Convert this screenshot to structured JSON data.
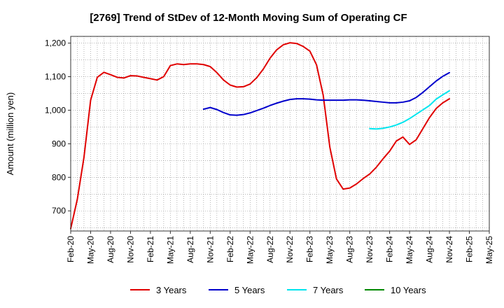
{
  "chart_data": {
    "type": "line",
    "title": "[2769]  Trend of StDev of 12-Month Moving Sum of Operating CF",
    "xlabel": "",
    "ylabel": "Amount (million yen)",
    "ylim": [
      640,
      1220
    ],
    "yticks": [
      700,
      800,
      900,
      1000,
      1100,
      1200
    ],
    "ytick_labels": [
      "700",
      "800",
      "900",
      "1,000",
      "1,100",
      "1,200"
    ],
    "xlim": [
      "2020-02",
      "2025-05"
    ],
    "xtick_labels": [
      "Feb-20",
      "May-20",
      "Aug-20",
      "Nov-20",
      "Feb-21",
      "May-21",
      "Aug-21",
      "Nov-21",
      "Feb-22",
      "May-22",
      "Aug-22",
      "Nov-22",
      "Feb-23",
      "May-23",
      "Aug-23",
      "Nov-23",
      "Feb-24",
      "May-24",
      "Aug-24",
      "Nov-24",
      "Feb-25",
      "May-25"
    ],
    "grid": true,
    "legend_position": "bottom",
    "series": [
      {
        "name": "3 Years",
        "color": "#e00000",
        "x": [
          "2020-02",
          "2020-03",
          "2020-04",
          "2020-05",
          "2020-06",
          "2020-07",
          "2020-08",
          "2020-09",
          "2020-10",
          "2020-11",
          "2020-12",
          "2021-01",
          "2021-02",
          "2021-03",
          "2021-04",
          "2021-05",
          "2021-06",
          "2021-07",
          "2021-08",
          "2021-09",
          "2021-10",
          "2021-11",
          "2021-12",
          "2022-01",
          "2022-02",
          "2022-03",
          "2022-04",
          "2022-05",
          "2022-06",
          "2022-07",
          "2022-08",
          "2022-09",
          "2022-10",
          "2022-11",
          "2022-12",
          "2023-01",
          "2023-02",
          "2023-03",
          "2023-04",
          "2023-05",
          "2023-06",
          "2023-07",
          "2023-08",
          "2023-09",
          "2023-10",
          "2023-11",
          "2023-12",
          "2024-01",
          "2024-02",
          "2024-03",
          "2024-04",
          "2024-05",
          "2024-06",
          "2024-07",
          "2024-08",
          "2024-09",
          "2024-10",
          "2024-11"
        ],
        "values": [
          647,
          735,
          860,
          1030,
          1098,
          1113,
          1106,
          1098,
          1096,
          1103,
          1102,
          1098,
          1094,
          1090,
          1100,
          1133,
          1138,
          1136,
          1138,
          1138,
          1136,
          1130,
          1112,
          1090,
          1075,
          1069,
          1070,
          1078,
          1097,
          1123,
          1155,
          1180,
          1195,
          1201,
          1199,
          1190,
          1176,
          1135,
          1045,
          890,
          795,
          765,
          768,
          780,
          796,
          810,
          830,
          855,
          878,
          908,
          920,
          898,
          912,
          945,
          978,
          1005,
          1022,
          1034
        ]
      },
      {
        "name": "5 Years",
        "color": "#0000cc",
        "x": [
          "2021-10",
          "2021-11",
          "2021-12",
          "2022-01",
          "2022-02",
          "2022-03",
          "2022-04",
          "2022-05",
          "2022-06",
          "2022-07",
          "2022-08",
          "2022-09",
          "2022-10",
          "2022-11",
          "2022-12",
          "2023-01",
          "2023-02",
          "2023-03",
          "2023-04",
          "2023-05",
          "2023-06",
          "2023-07",
          "2023-08",
          "2023-09",
          "2023-10",
          "2023-11",
          "2023-12",
          "2024-01",
          "2024-02",
          "2024-03",
          "2024-04",
          "2024-05",
          "2024-06",
          "2024-07",
          "2024-08",
          "2024-09",
          "2024-10",
          "2024-11"
        ],
        "values": [
          1003,
          1008,
          1002,
          993,
          986,
          985,
          987,
          992,
          999,
          1006,
          1014,
          1021,
          1027,
          1032,
          1034,
          1034,
          1033,
          1031,
          1030,
          1030,
          1030,
          1030,
          1031,
          1031,
          1030,
          1028,
          1026,
          1024,
          1022,
          1022,
          1024,
          1028,
          1038,
          1053,
          1070,
          1087,
          1101,
          1112
        ]
      },
      {
        "name": "7 Years",
        "color": "#00e5ee",
        "x": [
          "2023-11",
          "2023-12",
          "2024-01",
          "2024-02",
          "2024-03",
          "2024-04",
          "2024-05",
          "2024-06",
          "2024-07",
          "2024-08",
          "2024-09",
          "2024-10",
          "2024-11"
        ],
        "values": [
          945,
          944,
          946,
          950,
          956,
          964,
          975,
          988,
          1001,
          1014,
          1033,
          1046,
          1058
        ]
      },
      {
        "name": "10 Years",
        "color": "#008800",
        "x": [],
        "values": []
      }
    ]
  }
}
